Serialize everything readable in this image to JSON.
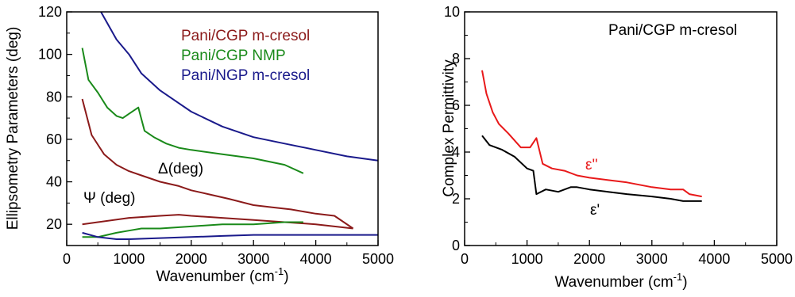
{
  "chart_data": [
    {
      "type": "line",
      "xlabel": "Wavenumber (cm",
      "xlabel_sup": "-1",
      "xlabel_close": ")",
      "ylabel": "Ellipsometry Parameters (deg)",
      "xlim": [
        0,
        5000
      ],
      "ylim": [
        10,
        120
      ],
      "xticks": [
        0,
        1000,
        2000,
        3000,
        4000,
        5000
      ],
      "xtick_labels": [
        "0",
        "1000",
        "2000",
        "3000",
        "4000",
        "5000"
      ],
      "yticks": [
        20,
        40,
        60,
        80,
        100,
        120
      ],
      "ytick_labels": [
        "20",
        "40",
        "60",
        "80",
        "100",
        "120"
      ],
      "grid": false,
      "legend_position": "top-right",
      "legend": [
        {
          "label": "Pani/CGP m-cresol",
          "color": "#8B1A1A"
        },
        {
          "label": "Pani/CGP NMP",
          "color": "#1A8A1A"
        },
        {
          "label": "Pani/NGP m-cresol",
          "color": "#1A1A8B"
        }
      ],
      "annotations": [
        {
          "text": "Δ(deg)",
          "x": 2300,
          "y": 46
        },
        {
          "text": "Ψ (deg)",
          "x": 450,
          "y": 30
        }
      ],
      "series": [
        {
          "key": "cgp_mcresol_delta",
          "color": "#8B1A1A",
          "x": [
            250,
            400,
            600,
            800,
            1000,
            1200,
            1500,
            1800,
            2000,
            2300,
            2600,
            3000,
            3300,
            3600,
            4000,
            4300,
            4600
          ],
          "y": [
            79,
            62,
            53,
            48,
            45,
            43,
            40,
            38,
            36,
            34,
            32,
            29,
            28,
            27,
            25,
            24,
            18
          ]
        },
        {
          "key": "cgp_mcresol_psi",
          "color": "#8B1A1A",
          "x": [
            250,
            500,
            1000,
            1500,
            1800,
            2000,
            2500,
            3000,
            3500,
            4000,
            4300,
            4600
          ],
          "y": [
            20,
            21,
            23,
            24,
            24.5,
            24,
            23,
            22,
            21,
            20,
            19,
            18
          ]
        },
        {
          "key": "cgp_nmp_delta",
          "color": "#1A8A1A",
          "x": [
            250,
            350,
            500,
            650,
            800,
            900,
            1000,
            1150,
            1250,
            1400,
            1600,
            1800,
            2000,
            2500,
            3000,
            3500,
            3800
          ],
          "y": [
            103,
            88,
            82,
            75,
            71,
            70,
            72,
            75,
            64,
            61,
            58,
            56,
            55,
            53,
            51,
            48,
            44
          ]
        },
        {
          "key": "cgp_nmp_psi",
          "color": "#1A8A1A",
          "x": [
            250,
            500,
            800,
            1000,
            1200,
            1500,
            2000,
            2500,
            3000,
            3500,
            3800
          ],
          "y": [
            14,
            14,
            16,
            17,
            18,
            18,
            19,
            20,
            20,
            21,
            21
          ]
        },
        {
          "key": "ngp_mcresol_delta",
          "color": "#1A1A8B",
          "x": [
            550,
            800,
            1000,
            1200,
            1500,
            2000,
            2500,
            3000,
            3500,
            4000,
            4500,
            5000
          ],
          "y": [
            120,
            107,
            100,
            91,
            83,
            73,
            66,
            61,
            58,
            55,
            52,
            50
          ]
        },
        {
          "key": "ngp_mcresol_psi",
          "color": "#1A1A8B",
          "x": [
            250,
            500,
            800,
            1000,
            1500,
            2000,
            2500,
            3000,
            3500,
            4000,
            4500,
            5000
          ],
          "y": [
            16,
            14,
            13,
            13,
            13.5,
            14,
            14.5,
            15,
            15,
            15,
            15,
            15
          ]
        }
      ]
    },
    {
      "type": "line",
      "xlabel": "Wavenumber (cm",
      "xlabel_sup": "-1",
      "xlabel_close": ")",
      "ylabel": "Complex Permittivity",
      "xlim": [
        0,
        5000
      ],
      "ylim": [
        0,
        10
      ],
      "xticks": [
        0,
        1000,
        2000,
        3000,
        4000,
        5000
      ],
      "xtick_labels": [
        "0",
        "1000",
        "2000",
        "3000",
        "4000",
        "5000"
      ],
      "yticks": [
        0,
        2,
        4,
        6,
        8,
        10
      ],
      "ytick_labels": [
        "0",
        "2",
        "4",
        "6",
        "8",
        "10"
      ],
      "grid": false,
      "title": "Pani/CGP m-cresol",
      "annotations": [
        {
          "text": "ε''",
          "x": 2750,
          "y": 3.6,
          "color": "#E8191A"
        },
        {
          "text": "ε'",
          "x": 2800,
          "y": 1.5,
          "color": "#000000"
        }
      ],
      "series": [
        {
          "key": "eps_double_prime",
          "color": "#E8191A",
          "x": [
            280,
            350,
            450,
            550,
            700,
            900,
            1050,
            1150,
            1250,
            1400,
            1600,
            1800,
            2000,
            2300,
            2600,
            3000,
            3300,
            3500,
            3600,
            3800
          ],
          "y": [
            7.5,
            6.5,
            5.7,
            5.2,
            4.8,
            4.2,
            4.2,
            4.6,
            3.5,
            3.3,
            3.2,
            3.0,
            2.9,
            2.8,
            2.7,
            2.5,
            2.4,
            2.4,
            2.2,
            2.1
          ]
        },
        {
          "key": "eps_prime",
          "color": "#000000",
          "x": [
            280,
            400,
            600,
            800,
            1000,
            1100,
            1150,
            1300,
            1500,
            1700,
            1800,
            2000,
            2300,
            2600,
            3000,
            3300,
            3500,
            3700,
            3800
          ],
          "y": [
            4.7,
            4.3,
            4.1,
            3.8,
            3.3,
            3.2,
            2.2,
            2.4,
            2.3,
            2.5,
            2.5,
            2.4,
            2.3,
            2.2,
            2.1,
            2.0,
            1.9,
            1.9,
            1.9
          ]
        }
      ]
    }
  ]
}
